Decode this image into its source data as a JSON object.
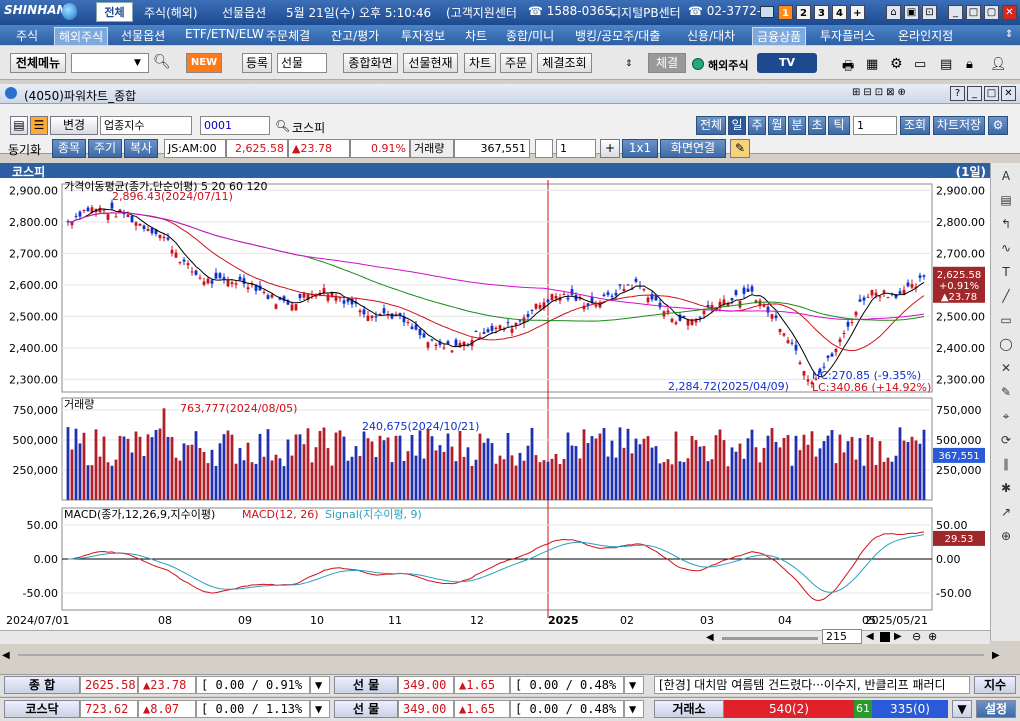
{
  "titlebar": {
    "logo": "SHINHAN",
    "tab_all": "전체",
    "items": [
      "주식(해외)",
      "선물옵션",
      "5월 21일(수) 오후 5:10:46",
      "(고객지원센터",
      "☎ 1588-0365,",
      "디지털PB센터",
      "☎ 02-3772-"
    ],
    "screen_nums": [
      "1",
      "2",
      "3",
      "4",
      "+"
    ]
  },
  "menubar": [
    "주식",
    "해외주식",
    "선물옵션",
    "ETF/ETN/ELW",
    "주문체결",
    "잔고/평가",
    "투자정보",
    "차트",
    "종합/미니",
    "뱅킹/공모주/대출",
    "신용/대차",
    "금융상품",
    "투자플러스",
    "온라인지점"
  ],
  "toolbar": {
    "menu_btn": "전체메뉴",
    "new_badge": "NEW",
    "register": "등록",
    "select_value": "선물",
    "buttons": [
      "종합화면",
      "선물현재",
      "차트",
      "주문",
      "체결조회"
    ],
    "settle": "체결",
    "overseas": "해외주식",
    "tv_badge": "TV"
  },
  "window": {
    "title": "(4050)파워차트_종합"
  },
  "chart_toolbar": {
    "change": "변경",
    "index_type": "업종지수",
    "code": "0001",
    "name": "코스피",
    "periods": [
      "전체",
      "일",
      "주",
      "월",
      "분",
      "초",
      "틱"
    ],
    "period_count": "1",
    "query": "조회",
    "save": "차트저장",
    "sync_label": "동기화",
    "tabs": [
      "종목",
      "주기",
      "복사"
    ],
    "time": "JS:AM:00",
    "price": "2,625.58",
    "change_val": "▲23.78",
    "change_pct": "0.91%",
    "volume_label": "거래량",
    "volume": "367,551",
    "count": "1",
    "layout": "1x1",
    "link": "화면연결"
  },
  "chart_header": {
    "name": "코스피",
    "period": "(1일)"
  },
  "chart_data": [
    {
      "type": "line",
      "title": "가격이동평균(종가,단순이평) 5 20 60 120",
      "ma_labels": [
        "5",
        "20",
        "60",
        "120"
      ],
      "ma_colors": [
        "#000000",
        "#d0101a",
        "#1a8a1a",
        "#d010d0"
      ],
      "ylim": [
        2260,
        2920
      ],
      "yticks": [
        "2,900.00",
        "2,800.00",
        "2,700.00",
        "2,600.00",
        "2,500.00",
        "2,400.00",
        "2,300.00"
      ],
      "ytick_values": [
        2900,
        2800,
        2700,
        2600,
        2500,
        2400,
        2300
      ],
      "annotations": {
        "high": "2,896.43(2024/07/11)",
        "low": "2,284.72(2025/04/09)",
        "hc": "HC:270.85 (-9.35%)",
        "lc": "LC:340.86 (+14.92%)"
      },
      "last_price": "2,625.58",
      "last_change_pct": "+0.91%",
      "last_change": "▲23.78",
      "x_months": [
        "2024/07/01",
        "08",
        "09",
        "10",
        "11",
        "12",
        "2025",
        "02",
        "03",
        "04",
        "05",
        "2025/05/21"
      ],
      "monthly_close": [
        2800,
        2850,
        2670,
        2590,
        2560,
        2560,
        2450,
        2400,
        2520,
        2560,
        2580,
        2480,
        2600,
        2300,
        2550,
        2625
      ]
    },
    {
      "type": "bar",
      "title": "거래량",
      "yticks": [
        "750,000",
        "500,000",
        "250,000"
      ],
      "ytick_values": [
        750000,
        500000,
        250000
      ],
      "annotations": {
        "max": "763,777(2024/08/05)",
        "mid": "240,675(2024/10/21)"
      },
      "last_volume": "367,551"
    },
    {
      "type": "line",
      "title": "MACD(종가,12,26,9,지수이평)",
      "series": [
        {
          "name": "MACD(12, 26)"
        },
        {
          "name": "Signal(지수이평, 9)"
        }
      ],
      "yticks": [
        "50.00",
        "0.00",
        "-50.00"
      ],
      "ytick_values": [
        50,
        0,
        -50
      ],
      "last_value": "29.53"
    }
  ],
  "scroll": {
    "count": "215"
  },
  "status": {
    "row1": {
      "label1": "종 합",
      "val1": "2625.58",
      "chg1": "▲23.78",
      "pct1": "[ 0.00 / 0.91% ]",
      "label2": "선 물",
      "val2": "349.00",
      "chg2": "▲1.65",
      "pct2": "[ 0.00 / 0.48% ]",
      "news": "[한경] 대치맘 여름템 건드렸다···이수지, 반클리프 패러디",
      "right": "지수"
    },
    "row2": {
      "label1": "코스닥",
      "val1": "723.62",
      "chg1": "▲8.07",
      "pct1": "[ 0.00 / 1.13% ]",
      "label2": "선 물",
      "val2": "349.00",
      "chg2": "▲1.65",
      "pct2": "[ 0.00 / 0.48% ]",
      "exchange": "거래소",
      "up": "540(2)",
      "flat": "61",
      "down": "335(0)",
      "settings": "설정"
    }
  }
}
